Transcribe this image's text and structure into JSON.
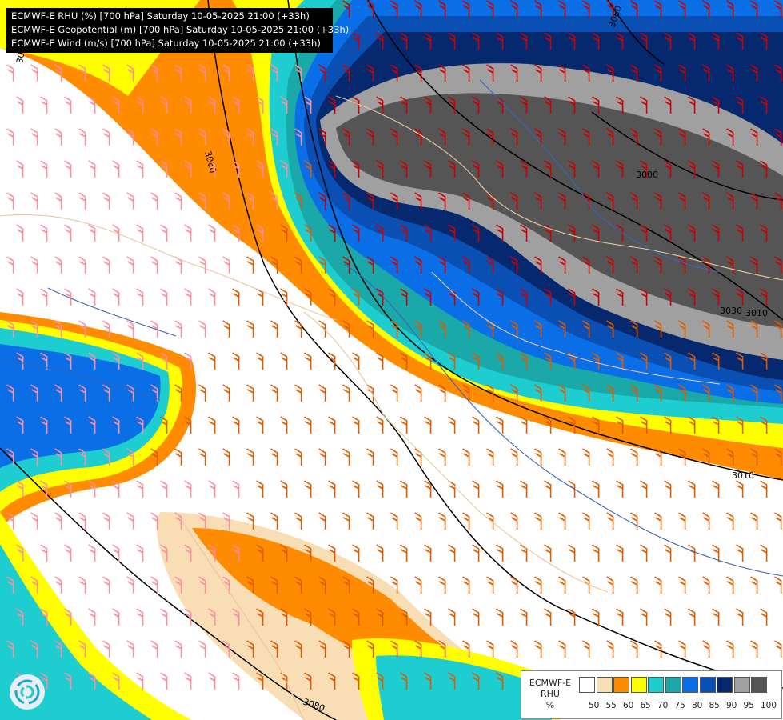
{
  "header": {
    "lines": [
      "ECMWF-E RHU (%) [700 hPa] Saturday 10-05-2025 21:00 (+33h)",
      "ECMWF-E Geopotential (m) [700 hPa] Saturday 10-05-2025 21:00 (+33h)",
      "ECMWF-E Wind (m/s) [700 hPa] Saturday 10-05-2025 21:00 (+33h)"
    ]
  },
  "legend": {
    "model": "ECMWF-E",
    "variable": "RHU",
    "unit": "%",
    "classes": [
      {
        "color": "#ffffff"
      },
      {
        "color": "#f9ddb4"
      },
      {
        "color": "#ff8c00"
      },
      {
        "color": "#ffff00"
      },
      {
        "color": "#1ecdd0"
      },
      {
        "color": "#1aa8a8"
      },
      {
        "color": "#0a6ee6"
      },
      {
        "color": "#0a50b4"
      },
      {
        "color": "#06286e"
      },
      {
        "color": "#a0a0a0"
      },
      {
        "color": "#555555"
      }
    ],
    "ticks": [
      "50",
      "55",
      "60",
      "65",
      "70",
      "75",
      "80",
      "85",
      "90",
      "95",
      "100"
    ]
  },
  "contours": {
    "labels": [
      "3000",
      "3010",
      "3030",
      "3060",
      "3080",
      "3030",
      "3060",
      "3010"
    ]
  },
  "map": {
    "frontier_color": "#e6c8a0",
    "river_color": "#3c64b4",
    "geopotential_color": "#000000",
    "wind_colors": [
      "#ff8ca0",
      "#e05a00",
      "#cc0000"
    ]
  },
  "logo": {
    "icon": "ecmwf-swirl-icon"
  }
}
